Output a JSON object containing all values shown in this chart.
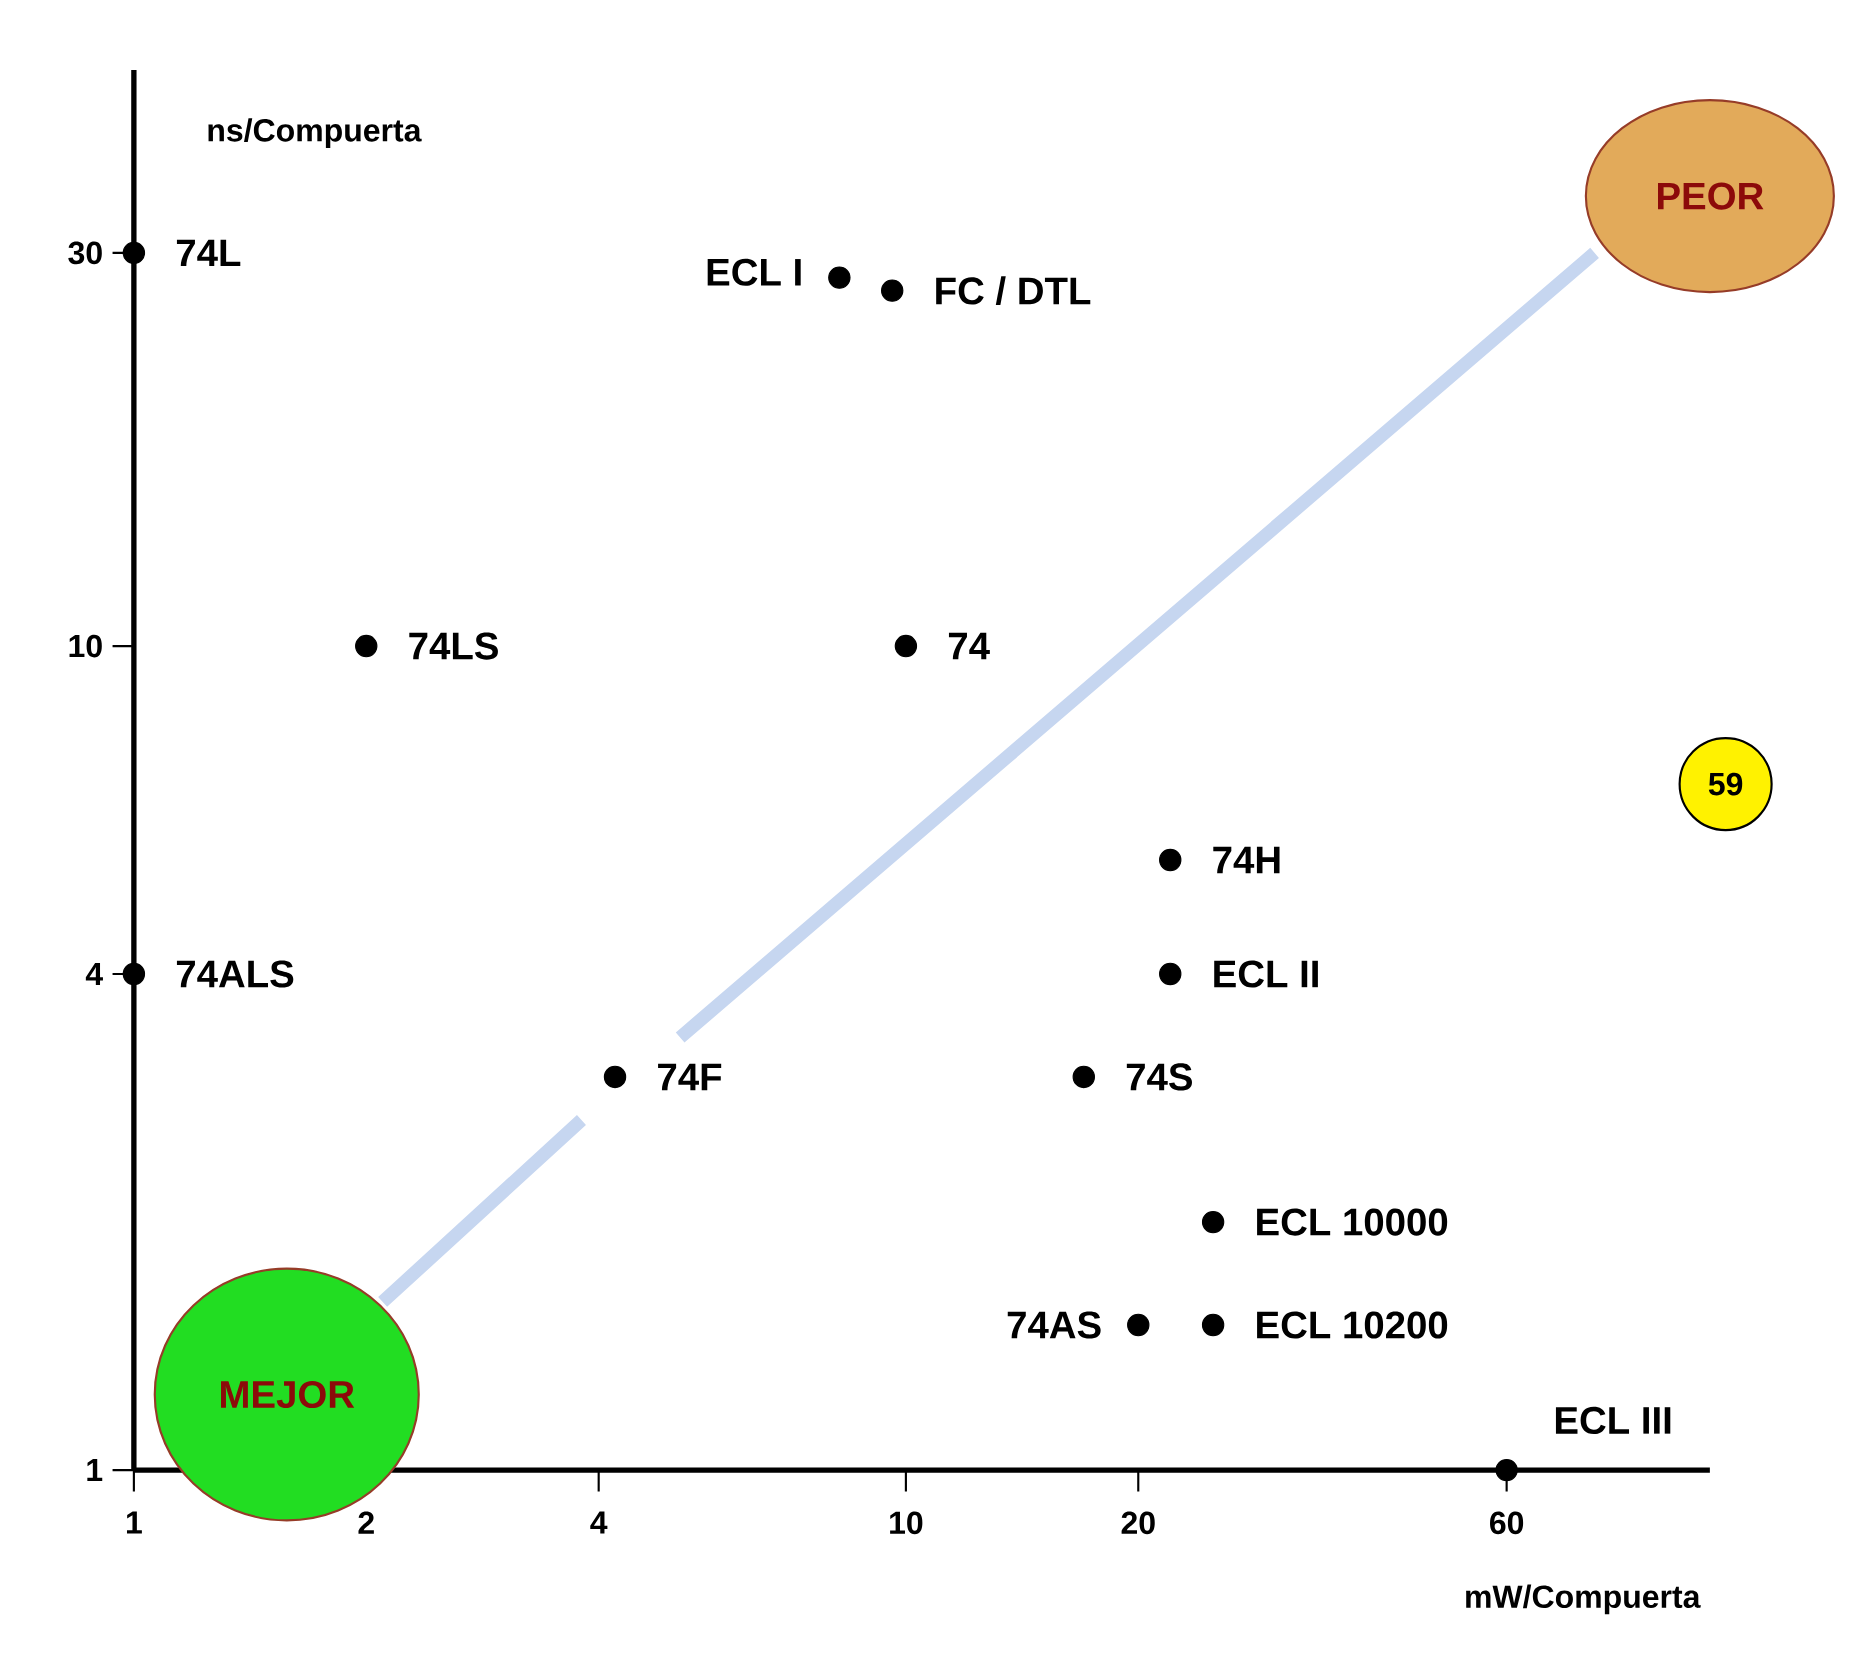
{
  "chart_data": {
    "type": "scatter",
    "xlabel": "mW/Compuerta",
    "ylabel": "ns/Compuerta",
    "log": "xy",
    "marker": "circle",
    "xlim": [
      1,
      110
    ],
    "ylim": [
      1,
      50
    ],
    "xticks": [
      1,
      2,
      4,
      10,
      20,
      60
    ],
    "yticks": [
      1,
      4,
      10,
      30
    ],
    "series": [
      {
        "name": "74L",
        "color": "#000000",
        "x": [
          1
        ],
        "values": [
          30
        ]
      },
      {
        "name": "ECL I",
        "color": "#000000",
        "x": [
          8.2
        ],
        "values": [
          28
        ]
      },
      {
        "name": "FC / DTL",
        "color": "#000000",
        "x": [
          9.6
        ],
        "values": [
          27
        ]
      },
      {
        "name": "74LS",
        "color": "#000000",
        "x": [
          2
        ],
        "values": [
          10
        ]
      },
      {
        "name": "74",
        "color": "#000000",
        "x": [
          10
        ],
        "values": [
          10
        ]
      },
      {
        "name": "74H",
        "color": "#000000",
        "x": [
          22
        ],
        "values": [
          5.5
        ]
      },
      {
        "name": "ECL II",
        "color": "#000000",
        "x": [
          22
        ],
        "values": [
          4
        ]
      },
      {
        "name": "74S",
        "color": "#000000",
        "x": [
          17
        ],
        "values": [
          3
        ]
      },
      {
        "name": "74F",
        "color": "#000000",
        "x": [
          4.2
        ],
        "values": [
          3
        ]
      },
      {
        "name": "74ALS",
        "color": "#000000",
        "x": [
          1
        ],
        "values": [
          4
        ]
      },
      {
        "name": "ECL 10000",
        "color": "#000000",
        "x": [
          25
        ],
        "values": [
          2
        ]
      },
      {
        "name": "74AS",
        "color": "#000000",
        "x": [
          20
        ],
        "values": [
          1.5
        ]
      },
      {
        "name": "ECL 10200",
        "color": "#000000",
        "x": [
          25
        ],
        "values": [
          1.5
        ]
      },
      {
        "name": "ECL III",
        "color": "#000000",
        "x": [
          60
        ],
        "values": [
          1
        ]
      },
      {
        "type": "line",
        "color": "#c6d6f0",
        "line_style": "solid",
        "marker": "none",
        "x": [
          2.1,
          3.8,
          4.4,
          5.1,
          78
        ],
        "values": [
          1.6,
          2.66,
          null,
          3.35,
          30
        ]
      }
    ],
    "annotations": [
      "MEJOR",
      "PEOR",
      "59"
    ]
  }
}
